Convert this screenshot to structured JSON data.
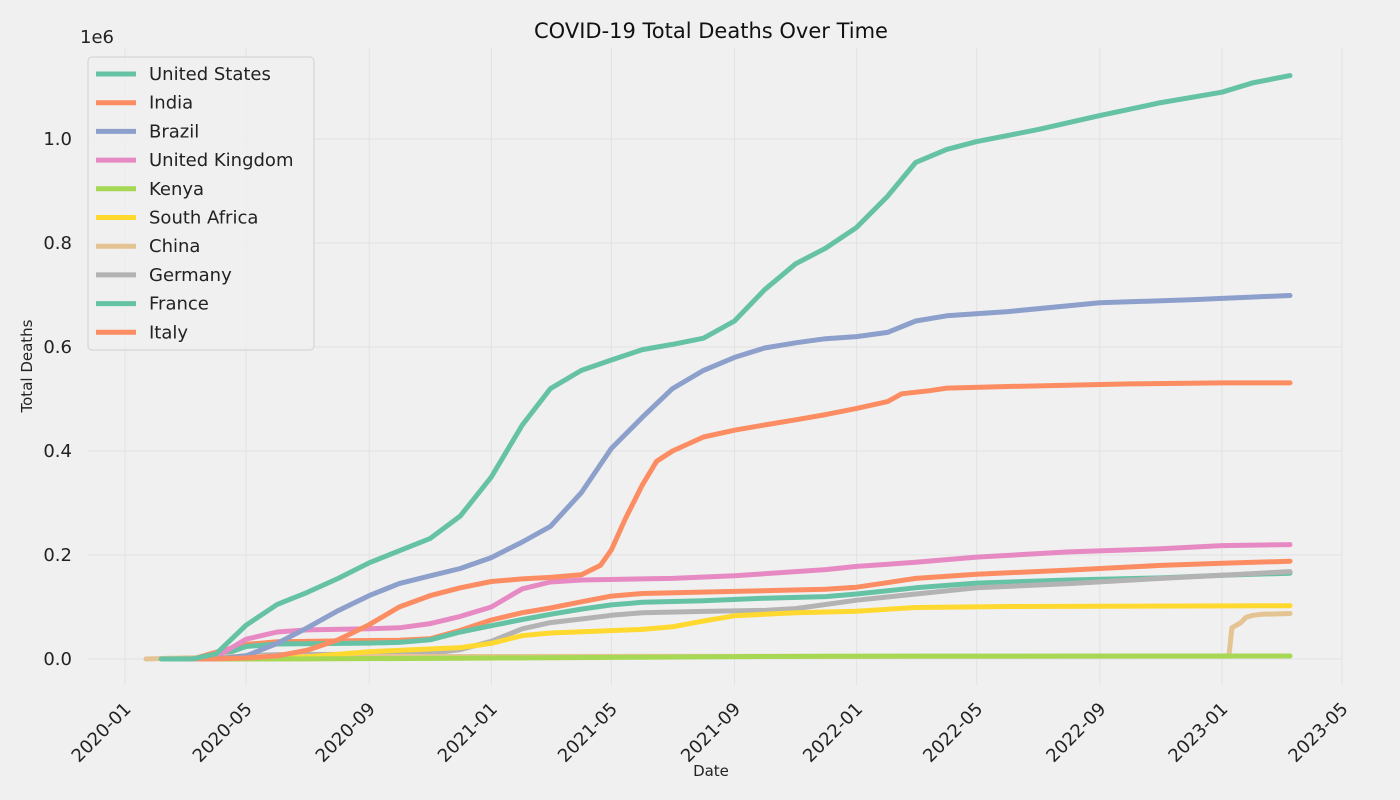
{
  "chart_data": {
    "type": "line",
    "title": "COVID-19 Total Deaths Over Time",
    "xlabel": "Date",
    "ylabel": "Total Deaths",
    "y_offset_label": "1e6",
    "xlim": [
      "2019-11-25",
      "2023-05-01"
    ],
    "ylim": [
      -50000,
      1175000
    ],
    "x_ticks": [
      "2020-01",
      "2020-05",
      "2020-09",
      "2021-01",
      "2021-05",
      "2021-09",
      "2022-01",
      "2022-05",
      "2022-09",
      "2023-01",
      "2023-05"
    ],
    "y_ticks": [
      0.0,
      0.2,
      0.4,
      0.6,
      0.8,
      1.0
    ],
    "grid": true,
    "legend_position": "top-left",
    "series": [
      {
        "name": "United States",
        "color": "#66c2a5",
        "points": [
          [
            "2020-02-06",
            0
          ],
          [
            "2020-03-10",
            500
          ],
          [
            "2020-04-01",
            10000
          ],
          [
            "2020-05-01",
            65000
          ],
          [
            "2020-06-01",
            105000
          ],
          [
            "2020-07-01",
            128000
          ],
          [
            "2020-08-01",
            155000
          ],
          [
            "2020-09-01",
            185000
          ],
          [
            "2020-10-01",
            208000
          ],
          [
            "2020-11-01",
            232000
          ],
          [
            "2020-12-01",
            275000
          ],
          [
            "2021-01-01",
            350000
          ],
          [
            "2021-02-01",
            450000
          ],
          [
            "2021-03-01",
            520000
          ],
          [
            "2021-04-01",
            555000
          ],
          [
            "2021-05-01",
            575000
          ],
          [
            "2021-06-01",
            595000
          ],
          [
            "2021-07-01",
            605000
          ],
          [
            "2021-08-01",
            617000
          ],
          [
            "2021-09-01",
            650000
          ],
          [
            "2021-10-01",
            710000
          ],
          [
            "2021-11-01",
            760000
          ],
          [
            "2021-12-01",
            790000
          ],
          [
            "2022-01-01",
            830000
          ],
          [
            "2022-02-01",
            890000
          ],
          [
            "2022-03-01",
            955000
          ],
          [
            "2022-04-01",
            980000
          ],
          [
            "2022-05-01",
            995000
          ],
          [
            "2022-07-01",
            1018000
          ],
          [
            "2022-09-01",
            1045000
          ],
          [
            "2022-11-01",
            1070000
          ],
          [
            "2023-01-01",
            1090000
          ],
          [
            "2023-02-01",
            1108000
          ],
          [
            "2023-03-10",
            1122000
          ]
        ]
      },
      {
        "name": "India",
        "color": "#fc8d62",
        "points": [
          [
            "2020-03-12",
            0
          ],
          [
            "2020-04-01",
            100
          ],
          [
            "2020-05-01",
            2000
          ],
          [
            "2020-06-01",
            6000
          ],
          [
            "2020-07-01",
            17000
          ],
          [
            "2020-08-01",
            37000
          ],
          [
            "2020-09-01",
            66000
          ],
          [
            "2020-10-01",
            100000
          ],
          [
            "2020-11-01",
            122000
          ],
          [
            "2020-12-01",
            137000
          ],
          [
            "2021-01-01",
            149000
          ],
          [
            "2021-02-01",
            154000
          ],
          [
            "2021-03-01",
            157000
          ],
          [
            "2021-04-01",
            162000
          ],
          [
            "2021-04-20",
            180000
          ],
          [
            "2021-05-01",
            210000
          ],
          [
            "2021-05-15",
            270000
          ],
          [
            "2021-06-01",
            335000
          ],
          [
            "2021-06-15",
            380000
          ],
          [
            "2021-07-01",
            400000
          ],
          [
            "2021-08-01",
            427000
          ],
          [
            "2021-09-01",
            440000
          ],
          [
            "2021-10-01",
            450000
          ],
          [
            "2021-11-01",
            460000
          ],
          [
            "2021-12-01",
            470000
          ],
          [
            "2022-01-01",
            482000
          ],
          [
            "2022-02-01",
            495000
          ],
          [
            "2022-02-15",
            510000
          ],
          [
            "2022-03-15",
            516000
          ],
          [
            "2022-04-01",
            521000
          ],
          [
            "2022-06-01",
            524000
          ],
          [
            "2022-10-01",
            529000
          ],
          [
            "2023-01-01",
            531000
          ],
          [
            "2023-03-10",
            531000
          ]
        ]
      },
      {
        "name": "Brazil",
        "color": "#8da0cb",
        "points": [
          [
            "2020-03-17",
            0
          ],
          [
            "2020-04-01",
            200
          ],
          [
            "2020-05-01",
            6000
          ],
          [
            "2020-06-01",
            30000
          ],
          [
            "2020-07-01",
            60000
          ],
          [
            "2020-08-01",
            93000
          ],
          [
            "2020-09-01",
            122000
          ],
          [
            "2020-10-01",
            145000
          ],
          [
            "2020-11-01",
            160000
          ],
          [
            "2020-12-01",
            174000
          ],
          [
            "2021-01-01",
            195000
          ],
          [
            "2021-02-01",
            225000
          ],
          [
            "2021-03-01",
            255000
          ],
          [
            "2021-04-01",
            320000
          ],
          [
            "2021-05-01",
            405000
          ],
          [
            "2021-06-01",
            465000
          ],
          [
            "2021-07-01",
            520000
          ],
          [
            "2021-08-01",
            555000
          ],
          [
            "2021-09-01",
            580000
          ],
          [
            "2021-10-01",
            598000
          ],
          [
            "2021-11-01",
            608000
          ],
          [
            "2021-12-01",
            616000
          ],
          [
            "2022-01-01",
            620000
          ],
          [
            "2022-02-01",
            628000
          ],
          [
            "2022-03-01",
            650000
          ],
          [
            "2022-04-01",
            660000
          ],
          [
            "2022-06-01",
            668000
          ],
          [
            "2022-09-01",
            685000
          ],
          [
            "2022-12-01",
            691000
          ],
          [
            "2023-03-10",
            699000
          ]
        ]
      },
      {
        "name": "United Kingdom",
        "color": "#e78ac3",
        "points": [
          [
            "2020-03-05",
            0
          ],
          [
            "2020-04-01",
            4000
          ],
          [
            "2020-05-01",
            38000
          ],
          [
            "2020-06-01",
            52000
          ],
          [
            "2020-07-01",
            56000
          ],
          [
            "2020-09-01",
            58000
          ],
          [
            "2020-10-01",
            60000
          ],
          [
            "2020-11-01",
            68000
          ],
          [
            "2020-12-01",
            82000
          ],
          [
            "2021-01-01",
            100000
          ],
          [
            "2021-02-01",
            135000
          ],
          [
            "2021-03-01",
            148000
          ],
          [
            "2021-04-01",
            152000
          ],
          [
            "2021-07-01",
            155000
          ],
          [
            "2021-09-01",
            160000
          ],
          [
            "2021-12-01",
            172000
          ],
          [
            "2022-01-01",
            178000
          ],
          [
            "2022-03-01",
            186000
          ],
          [
            "2022-05-01",
            196000
          ],
          [
            "2022-08-01",
            206000
          ],
          [
            "2022-11-01",
            212000
          ],
          [
            "2023-01-01",
            218000
          ],
          [
            "2023-03-10",
            220000
          ]
        ]
      },
      {
        "name": "Kenya",
        "color": "#a6d854",
        "points": [
          [
            "2020-03-15",
            0
          ],
          [
            "2020-07-01",
            200
          ],
          [
            "2020-12-01",
            1600
          ],
          [
            "2021-06-01",
            3500
          ],
          [
            "2021-12-01",
            5300
          ],
          [
            "2022-06-01",
            5650
          ],
          [
            "2023-03-10",
            5680
          ]
        ]
      },
      {
        "name": "South Africa",
        "color": "#ffd92f",
        "points": [
          [
            "2020-03-27",
            0
          ],
          [
            "2020-05-01",
            100
          ],
          [
            "2020-06-01",
            1000
          ],
          [
            "2020-07-01",
            4000
          ],
          [
            "2020-08-01",
            9000
          ],
          [
            "2020-09-01",
            14000
          ],
          [
            "2020-12-01",
            22000
          ],
          [
            "2021-01-01",
            30000
          ],
          [
            "2021-02-01",
            45000
          ],
          [
            "2021-03-01",
            50000
          ],
          [
            "2021-06-01",
            57000
          ],
          [
            "2021-07-01",
            62000
          ],
          [
            "2021-08-01",
            73000
          ],
          [
            "2021-09-01",
            83000
          ],
          [
            "2021-11-01",
            89000
          ],
          [
            "2022-01-01",
            92000
          ],
          [
            "2022-03-01",
            99000
          ],
          [
            "2022-06-01",
            101000
          ],
          [
            "2023-03-10",
            102500
          ]
        ]
      },
      {
        "name": "China",
        "color": "#e5c494",
        "points": [
          [
            "2020-01-22",
            0
          ],
          [
            "2020-02-15",
            1500
          ],
          [
            "2020-04-01",
            3300
          ],
          [
            "2020-04-17",
            4600
          ],
          [
            "2022-04-01",
            5200
          ],
          [
            "2022-12-31",
            5250
          ],
          [
            "2023-01-08",
            5300
          ],
          [
            "2023-01-11",
            60000
          ],
          [
            "2023-01-20",
            70000
          ],
          [
            "2023-01-25",
            80000
          ],
          [
            "2023-02-01",
            84000
          ],
          [
            "2023-02-10",
            86000
          ],
          [
            "2023-03-10",
            87500
          ]
        ]
      },
      {
        "name": "Germany",
        "color": "#b3b3b3",
        "points": [
          [
            "2020-03-09",
            0
          ],
          [
            "2020-04-01",
            900
          ],
          [
            "2020-05-01",
            6500
          ],
          [
            "2020-06-01",
            8500
          ],
          [
            "2020-09-01",
            9300
          ],
          [
            "2020-10-01",
            9800
          ],
          [
            "2020-11-01",
            11000
          ],
          [
            "2020-12-01",
            18000
          ],
          [
            "2021-01-01",
            34000
          ],
          [
            "2021-02-01",
            58000
          ],
          [
            "2021-03-01",
            70000
          ],
          [
            "2021-04-01",
            77000
          ],
          [
            "2021-05-01",
            84000
          ],
          [
            "2021-06-01",
            89000
          ],
          [
            "2021-08-01",
            91500
          ],
          [
            "2021-10-01",
            93500
          ],
          [
            "2021-11-01",
            97000
          ],
          [
            "2022-01-01",
            113000
          ],
          [
            "2022-03-01",
            125000
          ],
          [
            "2022-05-01",
            137000
          ],
          [
            "2022-08-01",
            145000
          ],
          [
            "2022-11-01",
            155000
          ],
          [
            "2023-01-01",
            161000
          ],
          [
            "2023-03-10",
            168000
          ]
        ]
      },
      {
        "name": "France",
        "color": "#66c2a5",
        "points": [
          [
            "2020-02-15",
            0
          ],
          [
            "2020-03-15",
            100
          ],
          [
            "2020-04-01",
            3500
          ],
          [
            "2020-05-01",
            24000
          ],
          [
            "2020-06-01",
            28800
          ],
          [
            "2020-09-01",
            30600
          ],
          [
            "2020-10-01",
            32000
          ],
          [
            "2020-11-01",
            37000
          ],
          [
            "2020-12-01",
            52000
          ],
          [
            "2021-01-01",
            64000
          ],
          [
            "2021-02-01",
            76000
          ],
          [
            "2021-03-01",
            86000
          ],
          [
            "2021-04-01",
            96000
          ],
          [
            "2021-05-01",
            104000
          ],
          [
            "2021-06-01",
            109000
          ],
          [
            "2021-08-01",
            112000
          ],
          [
            "2021-10-01",
            117000
          ],
          [
            "2021-12-01",
            120000
          ],
          [
            "2022-01-01",
            125000
          ],
          [
            "2022-03-01",
            137000
          ],
          [
            "2022-05-01",
            146000
          ],
          [
            "2022-08-01",
            152000
          ],
          [
            "2022-11-01",
            156000
          ],
          [
            "2023-01-01",
            161000
          ],
          [
            "2023-03-10",
            165000
          ]
        ]
      },
      {
        "name": "Italy",
        "color": "#fc8d62",
        "points": [
          [
            "2020-02-22",
            0
          ],
          [
            "2020-03-10",
            600
          ],
          [
            "2020-04-01",
            13000
          ],
          [
            "2020-05-01",
            28000
          ],
          [
            "2020-06-01",
            33000
          ],
          [
            "2020-09-01",
            35500
          ],
          [
            "2020-10-01",
            36000
          ],
          [
            "2020-11-01",
            39000
          ],
          [
            "2020-12-01",
            55000
          ],
          [
            "2021-01-01",
            75000
          ],
          [
            "2021-02-01",
            89000
          ],
          [
            "2021-03-01",
            98000
          ],
          [
            "2021-04-01",
            110000
          ],
          [
            "2021-05-01",
            121000
          ],
          [
            "2021-06-01",
            126000
          ],
          [
            "2021-09-01",
            130000
          ],
          [
            "2021-12-01",
            134000
          ],
          [
            "2022-01-01",
            138000
          ],
          [
            "2022-03-01",
            155000
          ],
          [
            "2022-05-01",
            163000
          ],
          [
            "2022-08-01",
            171000
          ],
          [
            "2022-11-01",
            180000
          ],
          [
            "2023-01-01",
            184000
          ],
          [
            "2023-03-10",
            188000
          ]
        ]
      }
    ]
  }
}
